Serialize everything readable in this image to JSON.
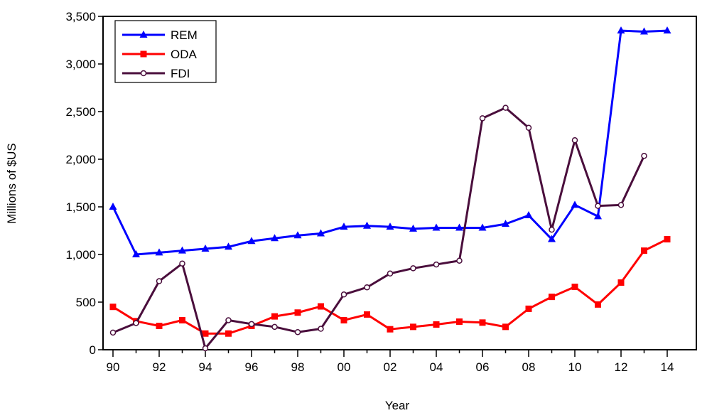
{
  "chart_data": {
    "type": "line",
    "title": "",
    "xlabel": "Year",
    "ylabel": "Millions of $US",
    "x": [
      "90",
      "91",
      "92",
      "93",
      "94",
      "95",
      "96",
      "97",
      "98",
      "99",
      "00",
      "01",
      "02",
      "03",
      "04",
      "05",
      "06",
      "07",
      "08",
      "09",
      "10",
      "11",
      "12",
      "13",
      "14"
    ],
    "x_tick_labels": [
      "90",
      "92",
      "94",
      "96",
      "98",
      "00",
      "02",
      "04",
      "06",
      "08",
      "10",
      "12",
      "14"
    ],
    "ylim": [
      0,
      3500
    ],
    "y_ticks": [
      0,
      500,
      1000,
      1500,
      2000,
      2500,
      3000,
      3500
    ],
    "y_tick_labels": [
      "0",
      "500",
      "1,000",
      "1,500",
      "2,000",
      "2,500",
      "3,000",
      "3,500"
    ],
    "grid": false,
    "legend_position": "top-left",
    "series": [
      {
        "name": "REM",
        "color": "#0000ff",
        "marker": "triangle",
        "values": [
          1500,
          1000,
          1020,
          1040,
          1060,
          1080,
          1140,
          1170,
          1200,
          1220,
          1290,
          1300,
          1290,
          1270,
          1280,
          1280,
          1280,
          1320,
          1410,
          1160,
          1520,
          1400,
          3350,
          3340,
          3350
        ]
      },
      {
        "name": "ODA",
        "color": "#ff0000",
        "marker": "square",
        "values": [
          450,
          300,
          250,
          310,
          170,
          170,
          250,
          350,
          390,
          455,
          310,
          370,
          215,
          240,
          265,
          295,
          285,
          240,
          430,
          555,
          660,
          475,
          705,
          1040,
          1160
        ]
      },
      {
        "name": "FDI",
        "color": "#4a0e3c",
        "marker": "circle-open",
        "values": [
          180,
          280,
          720,
          905,
          15,
          310,
          270,
          240,
          185,
          220,
          580,
          655,
          800,
          855,
          895,
          935,
          2430,
          2540,
          2330,
          1260,
          2200,
          1510,
          1520,
          2035,
          null
        ]
      }
    ]
  }
}
